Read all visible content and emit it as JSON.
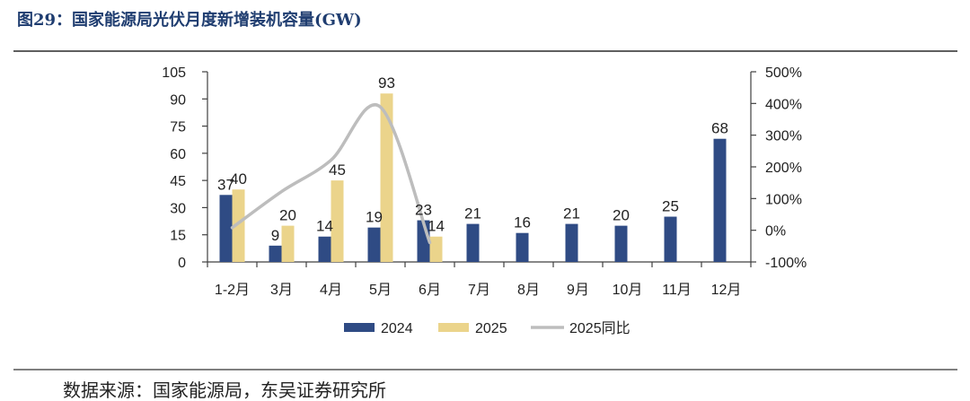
{
  "figure": {
    "source": "数据来源：国家能源局，东吴证券研究所"
  },
  "chart_data": {
    "type": "bar",
    "title": "图29：国家能源局光伏月度新增装机容量(GW)",
    "categories": [
      "1-2月",
      "3月",
      "4月",
      "5月",
      "6月",
      "7月",
      "8月",
      "9月",
      "10月",
      "11月",
      "12月"
    ],
    "series": [
      {
        "name": "2024",
        "type": "bar",
        "axis": "left",
        "color": "#2f4b84",
        "values": [
          37,
          9,
          14,
          19,
          23,
          21,
          16,
          21,
          20,
          25,
          68
        ]
      },
      {
        "name": "2025",
        "type": "bar",
        "axis": "left",
        "color": "#ebd48b",
        "values": [
          40,
          20,
          45,
          93,
          14,
          null,
          null,
          null,
          null,
          null,
          null
        ]
      },
      {
        "name": "2025同比",
        "type": "line",
        "axis": "right",
        "smooth": true,
        "color": "#bdbdbd",
        "values": [
          8,
          122,
          221,
          389,
          -39,
          null,
          null,
          null,
          null,
          null,
          null
        ]
      }
    ],
    "y_left": {
      "min": 0,
      "max": 105,
      "ticks": [
        0,
        15,
        30,
        45,
        60,
        75,
        90,
        105
      ]
    },
    "y_right": {
      "min": -100,
      "max": 500,
      "ticks": [
        -100,
        0,
        100,
        200,
        300,
        400,
        500
      ],
      "tick_labels": [
        "-100%",
        "0%",
        "100%",
        "200%",
        "300%",
        "400%",
        "500%"
      ]
    },
    "legend_position": "bottom",
    "grid": false
  }
}
